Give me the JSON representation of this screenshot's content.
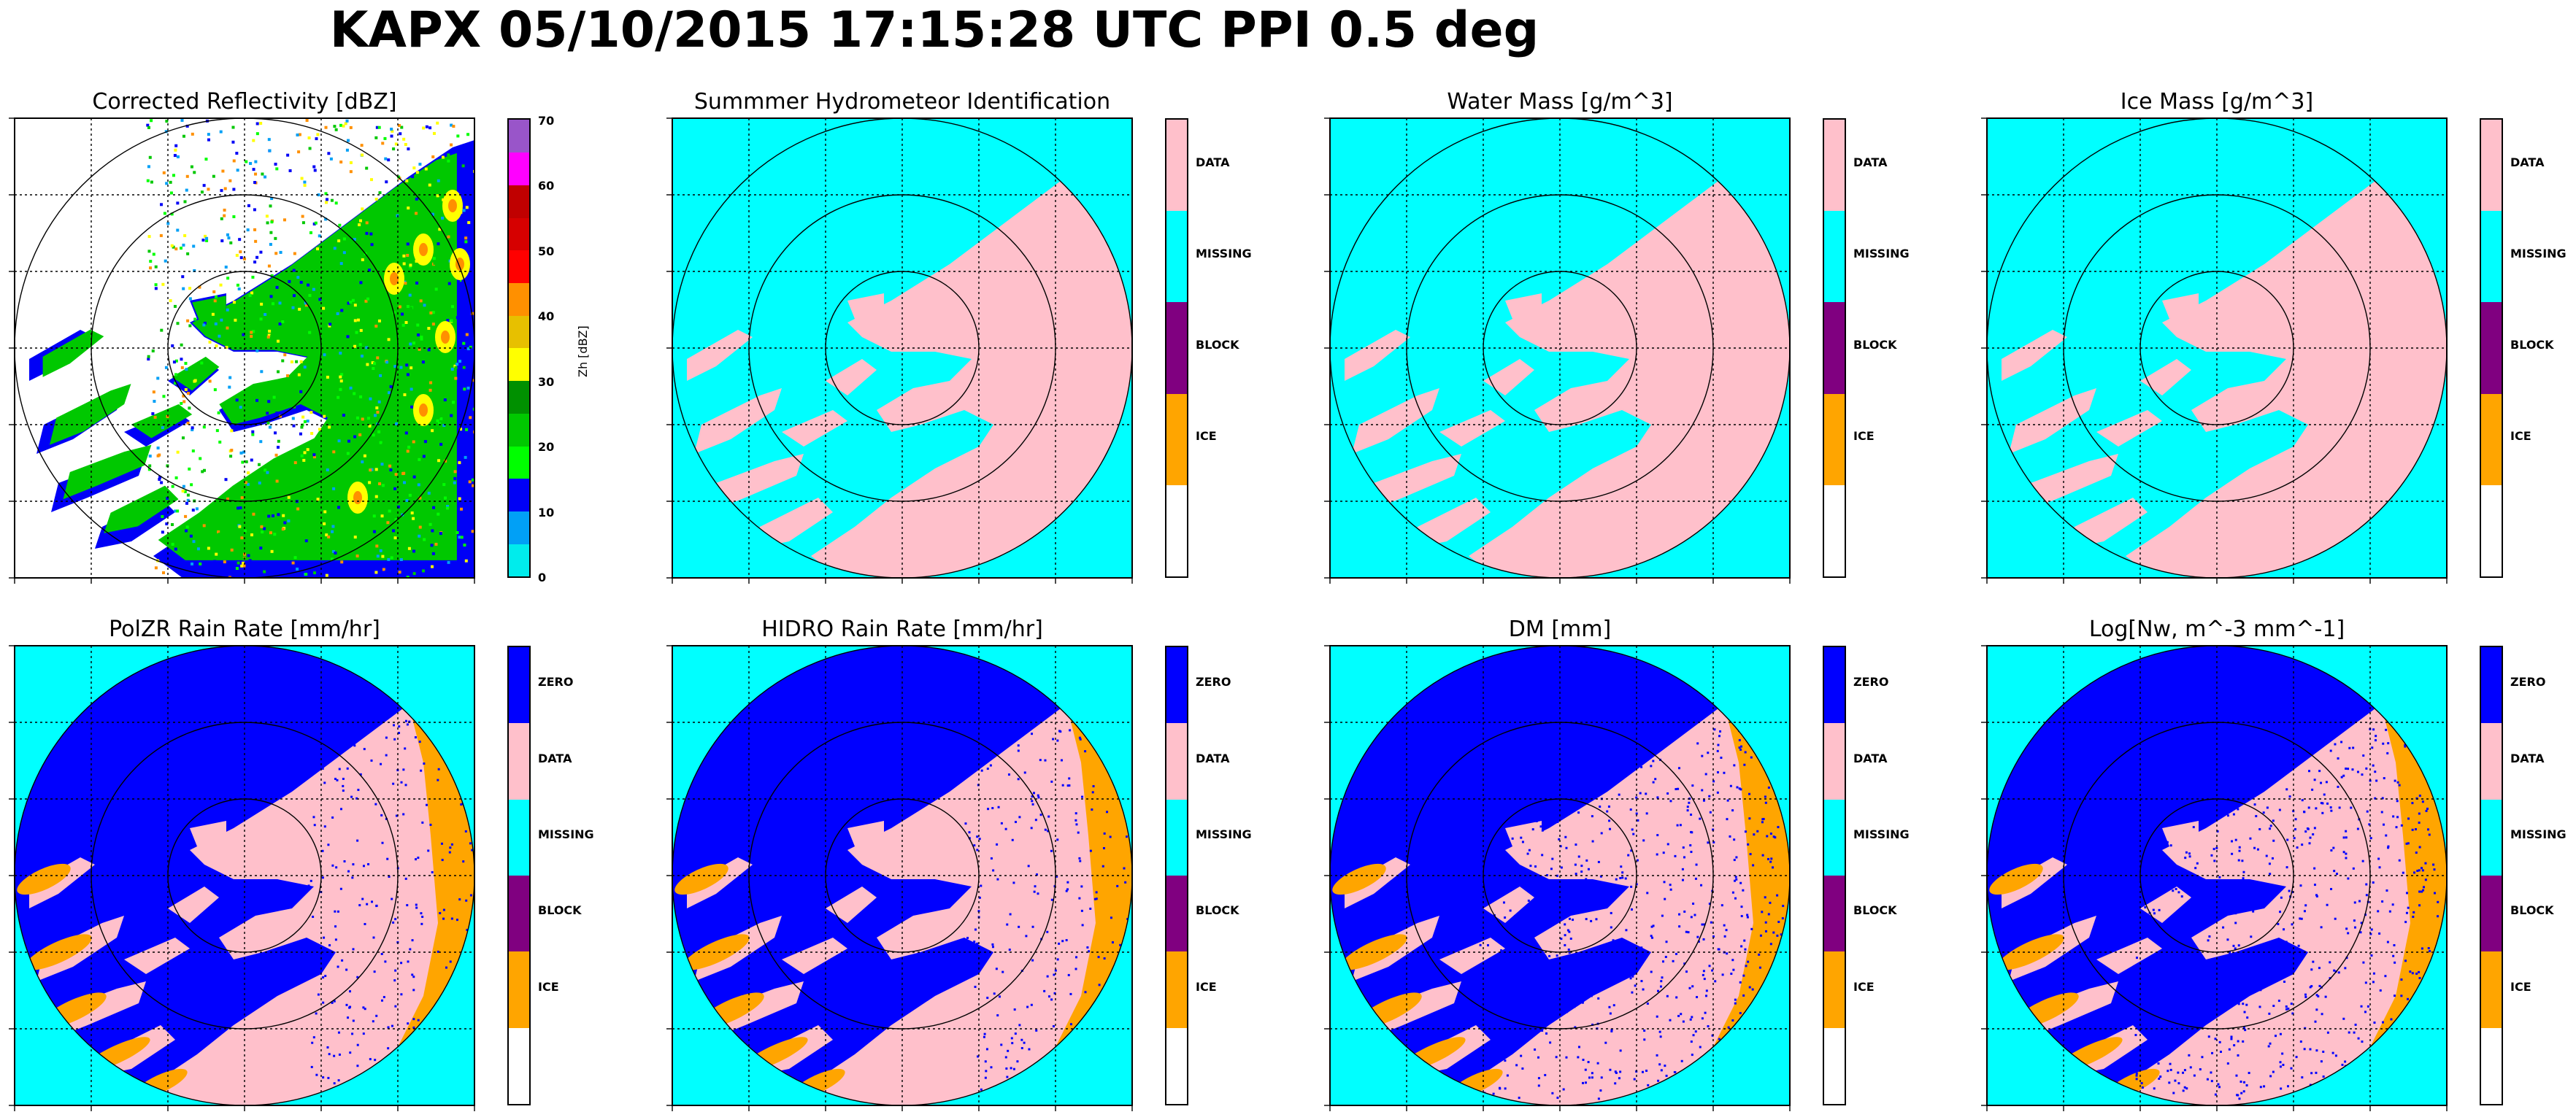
{
  "figure": {
    "title": "KAPX 05/10/2015 17:15:28 UTC PPI 0.5 deg"
  },
  "chart_data": [
    {
      "type": "heatmap",
      "title": "Corrected Reflectivity [dBZ]",
      "colorbar": {
        "label": "Zh [dBZ]",
        "ticks": [
          "0",
          "10",
          "20",
          "30",
          "40",
          "50",
          "60",
          "70"
        ],
        "colors": [
          "#00ECEC",
          "#01A0F6",
          "#0000F6",
          "#00FF00",
          "#00C800",
          "#009000",
          "#FFFF00",
          "#E7C000",
          "#FF9000",
          "#FF0000",
          "#D60000",
          "#C00000",
          "#FF00FF",
          "#9955C9"
        ]
      },
      "echo_colors": [
        "#0000F6",
        "#00C800",
        "#00FF00",
        "#FFFF00",
        "#FF9000",
        "#01A0F6"
      ]
    },
    {
      "type": "heatmap",
      "title": "Summmer Hydrometeor Identification",
      "colorbar": {
        "categories": [
          "DATA",
          "MISSING",
          "BLOCK",
          "ICE",
          ""
        ],
        "colors": [
          "#FFC0CB",
          "#00FFFF",
          "#800080",
          "#FFA500",
          "#FFFFFF"
        ]
      }
    },
    {
      "type": "heatmap",
      "title": "Water Mass [g/m^3]",
      "colorbar": {
        "categories": [
          "DATA",
          "MISSING",
          "BLOCK",
          "ICE",
          ""
        ],
        "colors": [
          "#FFC0CB",
          "#00FFFF",
          "#800080",
          "#FFA500",
          "#FFFFFF"
        ]
      }
    },
    {
      "type": "heatmap",
      "title": "Ice Mass [g/m^3]",
      "colorbar": {
        "categories": [
          "DATA",
          "MISSING",
          "BLOCK",
          "ICE",
          ""
        ],
        "colors": [
          "#FFC0CB",
          "#00FFFF",
          "#800080",
          "#FFA500",
          "#FFFFFF"
        ]
      }
    },
    {
      "type": "heatmap",
      "title": "PolZR Rain Rate [mm/hr]",
      "colorbar": {
        "categories": [
          "ZERO",
          "DATA",
          "MISSING",
          "BLOCK",
          "ICE",
          ""
        ],
        "colors": [
          "#0000FF",
          "#FFC0CB",
          "#00FFFF",
          "#800080",
          "#FFA500",
          "#FFFFFF"
        ]
      }
    },
    {
      "type": "heatmap",
      "title": "HIDRO Rain Rate [mm/hr]",
      "colorbar": {
        "categories": [
          "ZERO",
          "DATA",
          "MISSING",
          "BLOCK",
          "ICE",
          ""
        ],
        "colors": [
          "#0000FF",
          "#FFC0CB",
          "#00FFFF",
          "#800080",
          "#FFA500",
          "#FFFFFF"
        ]
      }
    },
    {
      "type": "heatmap",
      "title": "DM [mm]",
      "colorbar": {
        "categories": [
          "ZERO",
          "DATA",
          "MISSING",
          "BLOCK",
          "ICE",
          ""
        ],
        "colors": [
          "#0000FF",
          "#FFC0CB",
          "#00FFFF",
          "#800080",
          "#FFA500",
          "#FFFFFF"
        ]
      }
    },
    {
      "type": "heatmap",
      "title": "Log[Nw, m^-3 mm^-1]",
      "colorbar": {
        "categories": [
          "ZERO",
          "DATA",
          "MISSING",
          "BLOCK",
          "ICE",
          ""
        ],
        "colors": [
          "#0000FF",
          "#FFC0CB",
          "#00FFFF",
          "#800080",
          "#FFA500",
          "#FFFFFF"
        ]
      }
    }
  ]
}
